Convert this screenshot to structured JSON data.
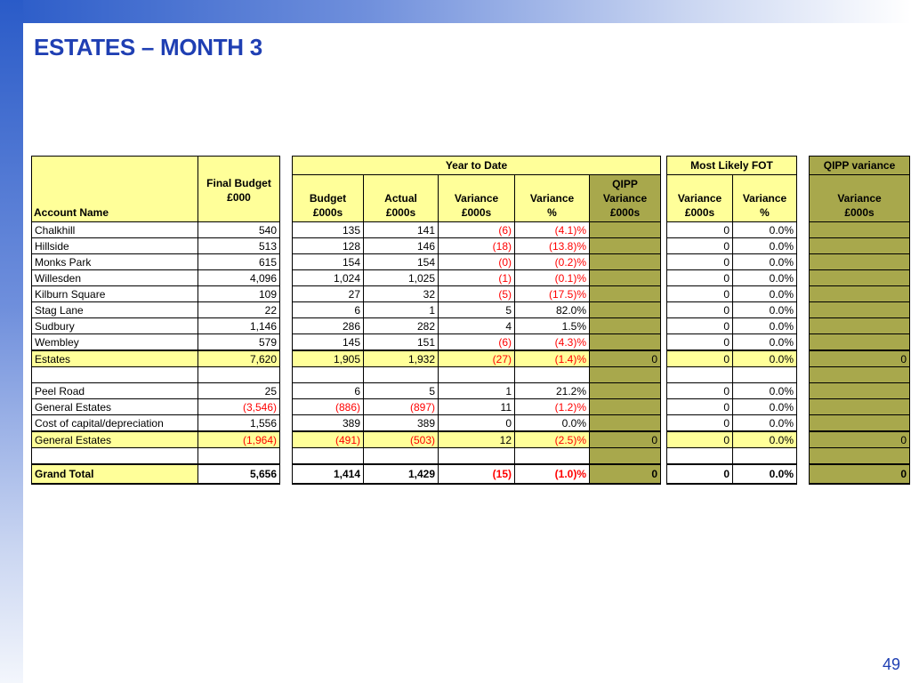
{
  "title": "ESTATES – MONTH 3",
  "page_number": "49",
  "headers": {
    "account_name": "Account Name",
    "final_budget": [
      "Final Budget",
      "£000"
    ],
    "ytd_group": "Year to Date",
    "budget": [
      "Budget",
      "£000s"
    ],
    "actual": [
      "Actual",
      "£000s"
    ],
    "variance": [
      "Variance",
      "£000s"
    ],
    "variance_pct": [
      "Variance",
      "%"
    ],
    "qipp_variance": [
      "QIPP",
      "Variance",
      "£000s"
    ],
    "fot_group": "Most Likely FOT",
    "fot_variance": [
      "Variance",
      "£000s"
    ],
    "fot_variance_pct": [
      "Variance",
      "%"
    ],
    "qipp_group": "QIPP variance",
    "qipp_fot_variance": [
      "Variance",
      "£000s"
    ]
  },
  "rows": [
    {
      "name": "Chalkhill",
      "final_budget": "540",
      "budget": "135",
      "actual": "141",
      "variance": "(6)",
      "variance_pct": "(4.1)%",
      "qipp": "",
      "fot_var": "0",
      "fot_pct": "0.0%",
      "qipp_fot": ""
    },
    {
      "name": "Hillside",
      "final_budget": "513",
      "budget": "128",
      "actual": "146",
      "variance": "(18)",
      "variance_pct": "(13.8)%",
      "qipp": "",
      "fot_var": "0",
      "fot_pct": "0.0%",
      "qipp_fot": ""
    },
    {
      "name": "Monks Park",
      "final_budget": "615",
      "budget": "154",
      "actual": "154",
      "variance": "(0)",
      "variance_pct": "(0.2)%",
      "qipp": "",
      "fot_var": "0",
      "fot_pct": "0.0%",
      "qipp_fot": ""
    },
    {
      "name": "Willesden",
      "final_budget": "4,096",
      "budget": "1,024",
      "actual": "1,025",
      "variance": "(1)",
      "variance_pct": "(0.1)%",
      "qipp": "",
      "fot_var": "0",
      "fot_pct": "0.0%",
      "qipp_fot": ""
    },
    {
      "name": "Kilburn Square",
      "final_budget": "109",
      "budget": "27",
      "actual": "32",
      "variance": "(5)",
      "variance_pct": "(17.5)%",
      "qipp": "",
      "fot_var": "0",
      "fot_pct": "0.0%",
      "qipp_fot": ""
    },
    {
      "name": "Stag Lane",
      "final_budget": "22",
      "budget": "6",
      "actual": "1",
      "variance": "5",
      "variance_pct": "82.0%",
      "qipp": "",
      "fot_var": "0",
      "fot_pct": "0.0%",
      "qipp_fot": ""
    },
    {
      "name": "Sudbury",
      "final_budget": "1,146",
      "budget": "286",
      "actual": "282",
      "variance": "4",
      "variance_pct": "1.5%",
      "qipp": "",
      "fot_var": "0",
      "fot_pct": "0.0%",
      "qipp_fot": ""
    },
    {
      "name": "Wembley",
      "final_budget": "579",
      "budget": "145",
      "actual": "151",
      "variance": "(6)",
      "variance_pct": "(4.3)%",
      "qipp": "",
      "fot_var": "0",
      "fot_pct": "0.0%",
      "qipp_fot": ""
    },
    {
      "name": "Estates",
      "final_budget": "7,620",
      "budget": "1,905",
      "actual": "1,932",
      "variance": "(27)",
      "variance_pct": "(1.4)%",
      "qipp": "0",
      "fot_var": "0",
      "fot_pct": "0.0%",
      "qipp_fot": "0"
    },
    {
      "name": "",
      "final_budget": "",
      "budget": "",
      "actual": "",
      "variance": "",
      "variance_pct": "",
      "qipp": "",
      "fot_var": "",
      "fot_pct": "",
      "qipp_fot": ""
    },
    {
      "name": "Peel Road",
      "final_budget": "25",
      "budget": "6",
      "actual": "5",
      "variance": "1",
      "variance_pct": "21.2%",
      "qipp": "",
      "fot_var": "0",
      "fot_pct": "0.0%",
      "qipp_fot": ""
    },
    {
      "name": "General Estates",
      "final_budget": "(3,546)",
      "budget": "(886)",
      "actual": "(897)",
      "variance": "11",
      "variance_pct": "(1.2)%",
      "qipp": "",
      "fot_var": "0",
      "fot_pct": "0.0%",
      "qipp_fot": ""
    },
    {
      "name": "Cost of capital/depreciation",
      "final_budget": "1,556",
      "budget": "389",
      "actual": "389",
      "variance": "0",
      "variance_pct": "0.0%",
      "qipp": "",
      "fot_var": "0",
      "fot_pct": "0.0%",
      "qipp_fot": ""
    },
    {
      "name": "General Estates",
      "final_budget": "(1,964)",
      "budget": "(491)",
      "actual": "(503)",
      "variance": "12",
      "variance_pct": "(2.5)%",
      "qipp": "0",
      "fot_var": "0",
      "fot_pct": "0.0%",
      "qipp_fot": "0"
    },
    {
      "name": "",
      "final_budget": "",
      "budget": "",
      "actual": "",
      "variance": "",
      "variance_pct": "",
      "qipp": "",
      "fot_var": "",
      "fot_pct": "",
      "qipp_fot": ""
    },
    {
      "name": "Grand Total",
      "final_budget": "5,656",
      "budget": "1,414",
      "actual": "1,429",
      "variance": "(15)",
      "variance_pct": "(1.0)%",
      "qipp": "0",
      "fot_var": "0",
      "fot_pct": "0.0%",
      "qipp_fot": "0"
    }
  ],
  "colors": {
    "title": "#1f3fb3",
    "header_fill": "#ffff99",
    "qipp_fill": "#a8a84c",
    "negative_text": "#ff0000",
    "band": "#2a5bc8"
  }
}
